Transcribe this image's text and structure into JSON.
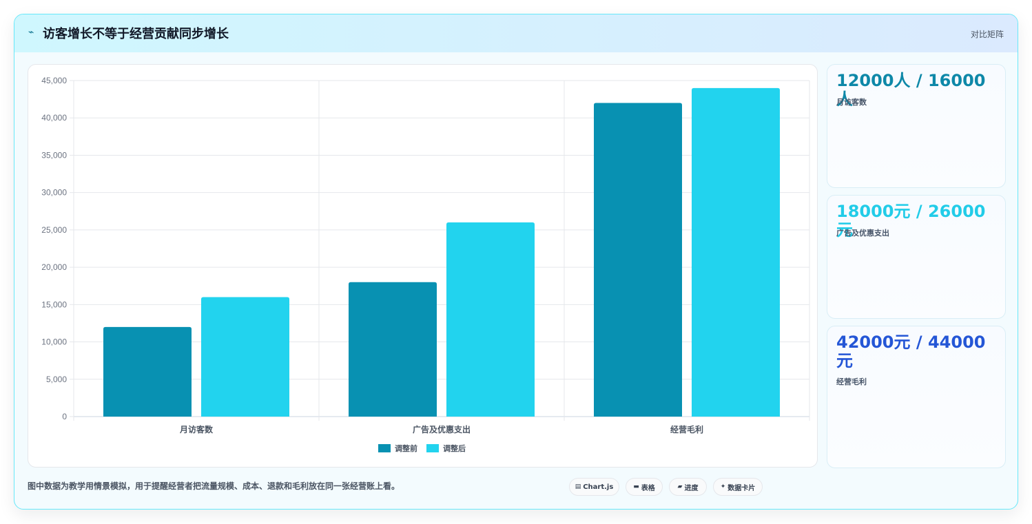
{
  "header": {
    "icon": "chart-line-icon",
    "title": "访客增长不等于经营贡献同步增长",
    "tag": "对比矩阵"
  },
  "chart_data": {
    "type": "bar",
    "categories": [
      "月访客数",
      "广告及优惠支出",
      "经营毛利"
    ],
    "series": [
      {
        "name": "调整前",
        "values": [
          12000,
          18000,
          42000
        ],
        "color": "#0891b2"
      },
      {
        "name": "调整后",
        "values": [
          16000,
          26000,
          44000
        ],
        "color": "#22d3ee"
      }
    ],
    "ylim": [
      0,
      45000
    ],
    "yticks": [
      0,
      5000,
      10000,
      15000,
      20000,
      25000,
      30000,
      35000,
      40000,
      45000
    ],
    "ytick_labels": [
      "0",
      "5,000",
      "10,000",
      "15,000",
      "20,000",
      "25,000",
      "30,000",
      "35,000",
      "40,000",
      "45,000"
    ],
    "grid": true,
    "legend": "bottom-center"
  },
  "stats": [
    {
      "value": "12000人 / 16000人",
      "label": "月访客数",
      "color": "#0e88a8"
    },
    {
      "value": "18000元 / 26000元",
      "label": "广告及优惠支出",
      "color": "#22cce8"
    },
    {
      "value": "42000元 / 44000元",
      "label": "经营毛利",
      "color": "#2456d6"
    }
  ],
  "footer": {
    "note": "图中数据为教学用情景模拟，用于提醒经营者把流量规模、成本、退款和毛利放在同一张经营账上看。",
    "chips": [
      {
        "icon": "chart-icon",
        "label": "Chart.js"
      },
      {
        "icon": "table-icon",
        "label": "表格"
      },
      {
        "icon": "progress-icon",
        "label": "进度"
      },
      {
        "icon": "card-icon",
        "label": "数据卡片"
      }
    ]
  }
}
